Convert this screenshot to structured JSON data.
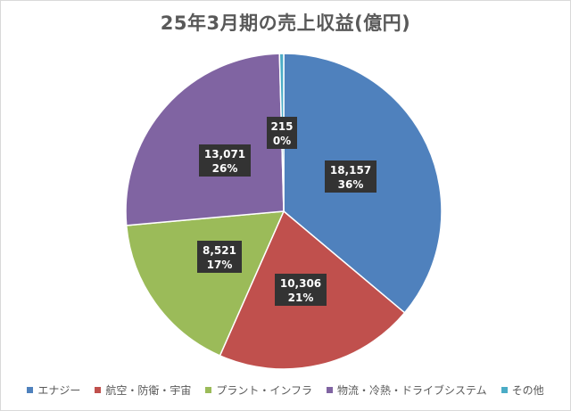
{
  "chart_data": {
    "type": "pie",
    "title": "25年3月期の売上収益(億円)",
    "categories": [
      "エナジー",
      "航空・防衛・宇宙",
      "プラント・インフラ",
      "物流・冷熱・ドライブシステム",
      "その他"
    ],
    "values": [
      18157,
      10306,
      8521,
      13071,
      215
    ],
    "value_labels": [
      "18,157",
      "10,306",
      "8,521",
      "13,071",
      "215"
    ],
    "percent_labels": [
      "36%",
      "21%",
      "17%",
      "26%",
      "0%"
    ],
    "colors": [
      "#4f81bd",
      "#c0504d",
      "#9bbb59",
      "#8064a2",
      "#4bacc6"
    ],
    "start": "12 o'clock",
    "direction": "clockwise",
    "legend_position": "bottom"
  }
}
